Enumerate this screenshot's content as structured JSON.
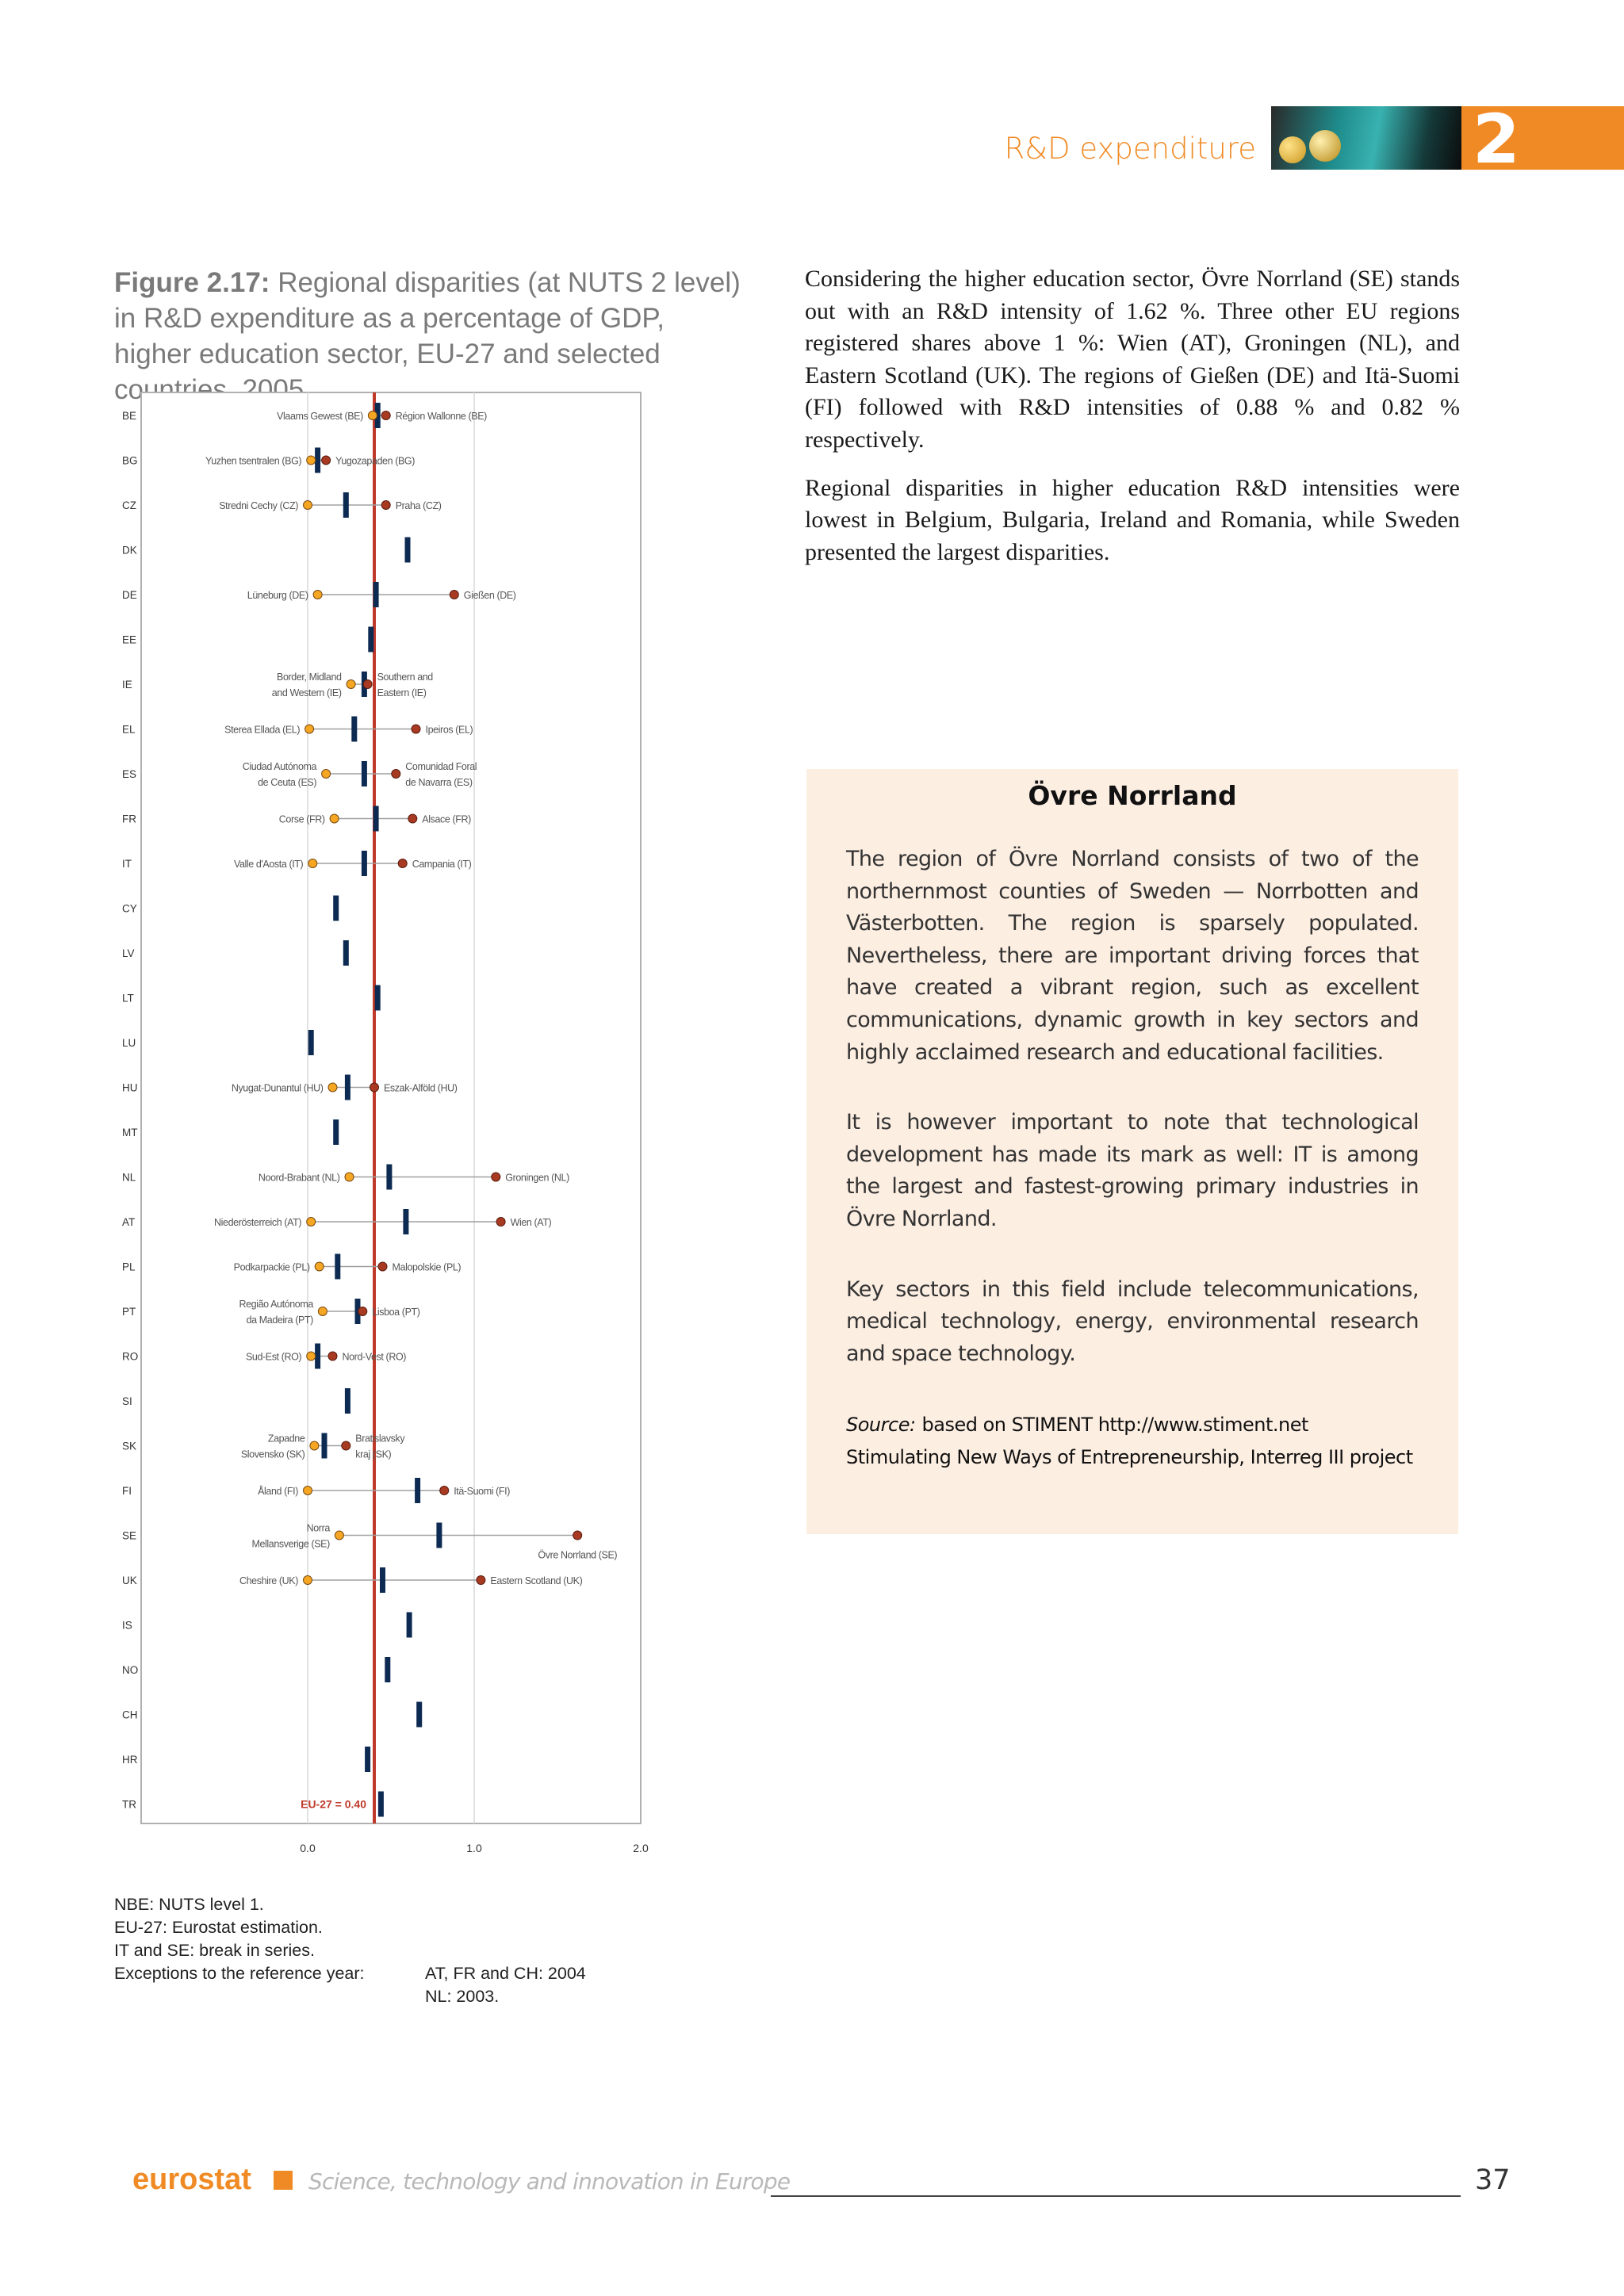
{
  "header": {
    "section_title": "R&D expenditure",
    "chapter_number": "2"
  },
  "figure": {
    "label": "Figure 2.17:",
    "title": "Regional disparities (at NUTS 2 level) in R&D expenditure as a percentage of GDP, higher education sector, EU-27 and selected countries, 2005"
  },
  "chart_data": {
    "type": "dot-range",
    "x_ticks": [
      "0.0",
      "1.0",
      "2.0"
    ],
    "xlim": [
      -0.12,
      2.0
    ],
    "reference_line": {
      "value": 0.4,
      "label": "EU-27 = 0.40",
      "color": "#c0392b"
    },
    "colors": {
      "min_dot": "#f5a623",
      "max_dot": "#a83a22",
      "national": "#0d2b52",
      "range_line": "#a0a0a0"
    },
    "rows": [
      {
        "country": "BE",
        "national": 0.42,
        "min": 0.39,
        "min_label": [
          "Vlaams Gewest (BE)"
        ],
        "max": 0.47,
        "max_label": [
          "Région Wallonne (BE)"
        ]
      },
      {
        "country": "BG",
        "national": 0.06,
        "min": 0.02,
        "min_label": [
          "Yuzhen tsentralen (BG)"
        ],
        "max": 0.11,
        "max_label": [
          "Yugozapaden (BG)"
        ]
      },
      {
        "country": "CZ",
        "national": 0.23,
        "min": 0.0,
        "min_label": [
          "Stredni Cechy (CZ)"
        ],
        "max": 0.47,
        "max_label": [
          "Praha (CZ)"
        ]
      },
      {
        "country": "DK",
        "national": 0.6
      },
      {
        "country": "DE",
        "national": 0.41,
        "min": 0.06,
        "min_label": [
          "Lüneburg (DE)"
        ],
        "max": 0.88,
        "max_label": [
          "Gießen (DE)"
        ]
      },
      {
        "country": "EE",
        "national": 0.38
      },
      {
        "country": "IE",
        "national": 0.34,
        "min": 0.26,
        "min_label": [
          "Border, Midland",
          "and Western (IE)"
        ],
        "max": 0.36,
        "max_label": [
          "Southern and",
          "Eastern (IE)"
        ]
      },
      {
        "country": "EL",
        "national": 0.28,
        "min": 0.01,
        "min_label": [
          "Sterea Ellada (EL)"
        ],
        "max": 0.65,
        "max_label": [
          "Ipeiros (EL)"
        ]
      },
      {
        "country": "ES",
        "national": 0.34,
        "min": 0.11,
        "min_label": [
          "Ciudad Autónoma",
          "de Ceuta (ES)"
        ],
        "max": 0.53,
        "max_label": [
          "Comunidad Foral",
          "de Navarra (ES)"
        ]
      },
      {
        "country": "FR",
        "national": 0.41,
        "min": 0.16,
        "min_label": [
          "Corse (FR)"
        ],
        "max": 0.63,
        "max_label": [
          "Alsace (FR)"
        ]
      },
      {
        "country": "IT",
        "national": 0.34,
        "min": 0.03,
        "min_label": [
          "Valle d'Aosta (IT)"
        ],
        "max": 0.57,
        "max_label": [
          "Campania (IT)"
        ]
      },
      {
        "country": "CY",
        "national": 0.17
      },
      {
        "country": "LV",
        "national": 0.23
      },
      {
        "country": "LT",
        "national": 0.42
      },
      {
        "country": "LU",
        "national": 0.02
      },
      {
        "country": "HU",
        "national": 0.24,
        "min": 0.15,
        "min_label": [
          "Nyugat-Dunantul (HU)"
        ],
        "max": 0.4,
        "max_label": [
          "Eszak-Alföld (HU)"
        ]
      },
      {
        "country": "MT",
        "national": 0.17
      },
      {
        "country": "NL",
        "national": 0.49,
        "min": 0.25,
        "min_label": [
          "Noord-Brabant (NL)"
        ],
        "max": 1.13,
        "max_label": [
          "Groningen (NL)"
        ]
      },
      {
        "country": "AT",
        "national": 0.59,
        "min": 0.02,
        "min_label": [
          "Niederösterreich (AT)"
        ],
        "max": 1.16,
        "max_label": [
          "Wien (AT)"
        ]
      },
      {
        "country": "PL",
        "national": 0.18,
        "min": 0.07,
        "min_label": [
          "Podkarpackie (PL)"
        ],
        "max": 0.45,
        "max_label": [
          "Malopolskie (PL)"
        ]
      },
      {
        "country": "PT",
        "national": 0.3,
        "min": 0.09,
        "min_label": [
          "Região Autónoma",
          "da Madeira (PT)"
        ],
        "max": 0.33,
        "max_label": [
          "Lisboa (PT)"
        ]
      },
      {
        "country": "RO",
        "national": 0.06,
        "min": 0.02,
        "min_label": [
          "Sud-Est (RO)"
        ],
        "max": 0.15,
        "max_label": [
          "Nord-Vest (RO)"
        ]
      },
      {
        "country": "SI",
        "national": 0.24
      },
      {
        "country": "SK",
        "national": 0.1,
        "min": 0.04,
        "min_label": [
          "Zapadne",
          "Slovensko (SK)"
        ],
        "max": 0.23,
        "max_label": [
          "Bratislavsky",
          "kraj (SK)"
        ]
      },
      {
        "country": "FI",
        "national": 0.66,
        "min": 0.0,
        "min_label": [
          "Åland (FI)"
        ],
        "max": 0.82,
        "max_label": [
          "Itä-Suomi (FI)"
        ]
      },
      {
        "country": "SE",
        "national": 0.79,
        "min": 0.19,
        "min_label": [
          "Norra",
          "Mellansverige (SE)"
        ],
        "max": 1.62,
        "max_label": [
          "Övre Norrland (SE)"
        ]
      },
      {
        "country": "UK",
        "national": 0.45,
        "min": 0.0,
        "min_label": [
          "Cheshire (UK)"
        ],
        "max": 1.04,
        "max_label": [
          "Eastern Scotland (UK)"
        ]
      },
      {
        "country": "IS",
        "national": 0.61
      },
      {
        "country": "NO",
        "national": 0.48
      },
      {
        "country": "CH",
        "national": 0.67
      },
      {
        "country": "HR",
        "national": 0.36
      },
      {
        "country": "TR",
        "national": 0.44
      }
    ]
  },
  "notes": [
    {
      "label": "NBE: NUTS level 1.",
      "value": ""
    },
    {
      "label": "EU-27: Eurostat estimation.",
      "value": ""
    },
    {
      "label": "IT and SE: break in series.",
      "value": ""
    },
    {
      "label": "Exceptions to the reference year:",
      "value": "AT, FR and CH: 2004"
    },
    {
      "label": "",
      "value": "NL: 2003."
    }
  ],
  "body": {
    "p1": "Considering the higher education sector, Övre Norrland (SE) stands out with an R&D intensity of 1.62 %. Three other EU regions registered shares above 1 %: Wien (AT), Groningen (NL), and Eastern Scotland (UK). The regions of Gießen (DE) and Itä-Suomi (FI) followed with R&D intensities of 0.88 % and 0.82 % respectively.",
    "p2": "Regional disparities in higher education R&D intensities were lowest in Belgium, Bulgaria, Ireland and Romania, while Sweden presented the largest disparities."
  },
  "box": {
    "title": "Övre Norrland",
    "p1": "The region of Övre Norrland consists of two of the northernmost counties of Sweden — Norrbotten and Västerbotten. The region is sparsely populated. Nevertheless, there are important driving forces that have created a vibrant region, such as excellent communications, dynamic growth in key sectors and highly acclaimed research and educational facilities.",
    "p2": "It is however important to note that technological development has made its mark as well: IT is among the largest and fastest-growing primary industries in Övre Norrland.",
    "p3": "Key sectors in this field include telecommunications, medical technology, energy, environmental research and space technology.",
    "source_label": "Source:",
    "source_text": "based on STIMENT http://www.stiment.net Stimulating New Ways of Entrepreneurship, Interreg III project"
  },
  "footer": {
    "logo": "eurostat",
    "publication": "Science, technology and innovation in Europe",
    "page_number": "37"
  }
}
